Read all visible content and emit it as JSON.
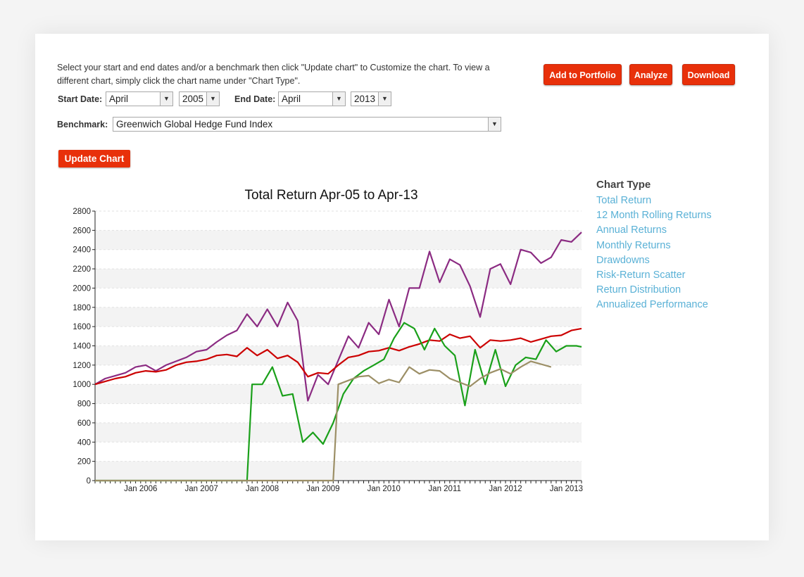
{
  "intro_text": "Select your start and end dates and/or a benchmark then click \"Update chart\" to Customize the chart. To view a different chart, simply click the chart name under \"Chart Type\".",
  "controls": {
    "start_label": "Start Date:",
    "start_month": "April",
    "start_year": "2005",
    "end_label": "End Date:",
    "end_month": "April",
    "end_year": "2013",
    "benchmark_label": "Benchmark:",
    "benchmark_value": "Greenwich Global Hedge Fund Index",
    "dropdown_icon": "chevron-down-icon"
  },
  "buttons": {
    "add_portfolio": "Add to Portfolio",
    "analyze": "Analyze",
    "download": "Download",
    "update_chart": "Update Chart"
  },
  "chart_type": {
    "title": "Chart Type",
    "items": [
      "Total Return",
      "12 Month Rolling Returns",
      "Annual Returns",
      "Monthly Returns",
      "Drawdowns",
      "Risk-Return Scatter",
      "Return Distribution",
      "Annualized Performance"
    ]
  },
  "colors": {
    "button_red": "#e8300a",
    "link_blue": "#5ab1d6",
    "series_purple": "#8b2b82",
    "series_red": "#cc0000",
    "series_green": "#1aa01a",
    "series_tan": "#9c8f66"
  },
  "chart_data": {
    "type": "line",
    "title": "Total Return Apr-05 to Apr-13",
    "xlabel": "",
    "ylabel": "",
    "ylim": [
      0,
      2800
    ],
    "y_ticks": [
      0,
      200,
      400,
      600,
      800,
      1000,
      1200,
      1400,
      1600,
      1800,
      2000,
      2200,
      2400,
      2600,
      2800
    ],
    "xlim": [
      "2005-04",
      "2013-04"
    ],
    "x_tick_labels": [
      "Jan 2006",
      "Jan 2007",
      "Jan 2008",
      "Jan 2009",
      "Jan 2010",
      "Jan 2011",
      "Jan 2012",
      "Jan 2013"
    ],
    "grid": "alternating horizontal bands",
    "series": [
      {
        "color": "#8b2b82",
        "x": [
          "2005-04",
          "2005-06",
          "2005-08",
          "2005-10",
          "2005-12",
          "2006-02",
          "2006-04",
          "2006-06",
          "2006-08",
          "2006-10",
          "2006-12",
          "2007-02",
          "2007-04",
          "2007-06",
          "2007-08",
          "2007-10",
          "2007-12",
          "2008-02",
          "2008-04",
          "2008-06",
          "2008-08",
          "2008-10",
          "2008-12",
          "2009-02",
          "2009-04",
          "2009-06",
          "2009-08",
          "2009-10",
          "2009-12",
          "2010-02",
          "2010-04",
          "2010-06",
          "2010-08",
          "2010-10",
          "2010-12",
          "2011-02",
          "2011-04",
          "2011-06",
          "2011-08",
          "2011-10",
          "2011-12",
          "2012-02",
          "2012-04",
          "2012-06",
          "2012-08",
          "2012-10",
          "2012-12",
          "2013-02",
          "2013-04"
        ],
        "values": [
          1000,
          1060,
          1090,
          1120,
          1180,
          1200,
          1140,
          1200,
          1240,
          1280,
          1340,
          1360,
          1440,
          1510,
          1560,
          1730,
          1600,
          1780,
          1600,
          1850,
          1660,
          830,
          1100,
          1000,
          1250,
          1500,
          1380,
          1640,
          1520,
          1880,
          1600,
          2000,
          2000,
          2380,
          2060,
          2300,
          2240,
          2020,
          1700,
          2200,
          2250,
          2040,
          2400,
          2370,
          2260,
          2320,
          2500,
          2480,
          2580
        ]
      },
      {
        "color": "#cc0000",
        "x": [
          "2005-04",
          "2005-06",
          "2005-08",
          "2005-10",
          "2005-12",
          "2006-02",
          "2006-04",
          "2006-06",
          "2006-08",
          "2006-10",
          "2006-12",
          "2007-02",
          "2007-04",
          "2007-06",
          "2007-08",
          "2007-10",
          "2007-12",
          "2008-02",
          "2008-04",
          "2008-06",
          "2008-08",
          "2008-10",
          "2008-12",
          "2009-02",
          "2009-04",
          "2009-06",
          "2009-08",
          "2009-10",
          "2009-12",
          "2010-02",
          "2010-04",
          "2010-06",
          "2010-08",
          "2010-10",
          "2010-12",
          "2011-02",
          "2011-04",
          "2011-06",
          "2011-08",
          "2011-10",
          "2011-12",
          "2012-02",
          "2012-04",
          "2012-06",
          "2012-08",
          "2012-10",
          "2012-12",
          "2013-02",
          "2013-04"
        ],
        "values": [
          1000,
          1030,
          1060,
          1080,
          1120,
          1140,
          1130,
          1150,
          1200,
          1230,
          1240,
          1260,
          1300,
          1310,
          1290,
          1380,
          1300,
          1360,
          1270,
          1300,
          1230,
          1080,
          1120,
          1110,
          1200,
          1280,
          1300,
          1340,
          1350,
          1380,
          1350,
          1390,
          1420,
          1460,
          1450,
          1520,
          1480,
          1500,
          1380,
          1460,
          1450,
          1460,
          1480,
          1440,
          1470,
          1500,
          1510,
          1560,
          1580
        ]
      },
      {
        "color": "#1aa01a",
        "x": [
          "2005-04",
          "2006-06",
          "2007-06",
          "2007-10",
          "2007-11",
          "2008-01",
          "2008-03",
          "2008-05",
          "2008-07",
          "2008-09",
          "2008-11",
          "2009-01",
          "2009-03",
          "2009-05",
          "2009-07",
          "2009-09",
          "2009-11",
          "2010-01",
          "2010-03",
          "2010-05",
          "2010-07",
          "2010-09",
          "2010-11",
          "2011-01",
          "2011-03",
          "2011-05",
          "2011-07",
          "2011-09",
          "2011-11",
          "2012-01",
          "2012-03",
          "2012-05",
          "2012-07",
          "2012-09",
          "2012-11",
          "2013-01",
          "2013-03",
          "2013-04"
        ],
        "values": [
          0,
          0,
          0,
          0,
          1000,
          1000,
          1180,
          880,
          900,
          400,
          500,
          380,
          600,
          900,
          1060,
          1140,
          1200,
          1260,
          1480,
          1640,
          1580,
          1360,
          1580,
          1400,
          1300,
          780,
          1360,
          1000,
          1360,
          980,
          1200,
          1280,
          1260,
          1460,
          1340,
          1400,
          1400,
          1390
        ]
      },
      {
        "color": "#9c8f66",
        "x": [
          "2005-04",
          "2007-06",
          "2009-03",
          "2009-04",
          "2009-06",
          "2009-08",
          "2009-10",
          "2009-12",
          "2010-02",
          "2010-04",
          "2010-06",
          "2010-08",
          "2010-10",
          "2010-12",
          "2011-02",
          "2011-04",
          "2011-06",
          "2011-08",
          "2011-10",
          "2011-12",
          "2012-02",
          "2012-04",
          "2012-06",
          "2012-08",
          "2012-10"
        ],
        "values": [
          0,
          0,
          0,
          1000,
          1040,
          1080,
          1090,
          1010,
          1050,
          1020,
          1180,
          1110,
          1150,
          1140,
          1060,
          1020,
          980,
          1060,
          1120,
          1160,
          1110,
          1180,
          1240,
          1210,
          1180
        ]
      }
    ]
  }
}
